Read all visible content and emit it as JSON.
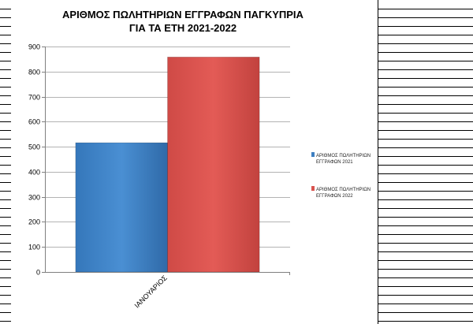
{
  "chart_data": {
    "type": "bar",
    "title_lines": [
      "ΑΡΙΘΜΟΣ ΠΩΛΗΤΗΡΙΩΝ ΕΓΓΡΑΦΩΝ ΠΑΓΚΥΠΡΙΑ",
      "ΓΙΑ ΤΑ ΕΤΗ 2021-2022"
    ],
    "categories": [
      "ΙΑΝΟΥΑΡΙΟΣ"
    ],
    "series": [
      {
        "name_lines": [
          "ΑΡΙΘΜΟΣ ΠΩΛΗΤΗΡΙΩΝ",
          "ΕΓΓΡΑΦΩΝ 2021"
        ],
        "values": [
          516
        ],
        "color": "#3e7fc1"
      },
      {
        "name_lines": [
          "ΑΡΙΘΜΟΣ ΠΩΛΗΤΗΡΙΩΝ",
          "ΕΓΓΡΑΦΩΝ 2022"
        ],
        "values": [
          858
        ],
        "color": "#d9534f"
      }
    ],
    "ylim": [
      0,
      900
    ],
    "yticks": [
      0,
      100,
      200,
      300,
      400,
      500,
      600,
      700,
      800,
      900
    ],
    "grid": true,
    "legend_position": "right"
  }
}
